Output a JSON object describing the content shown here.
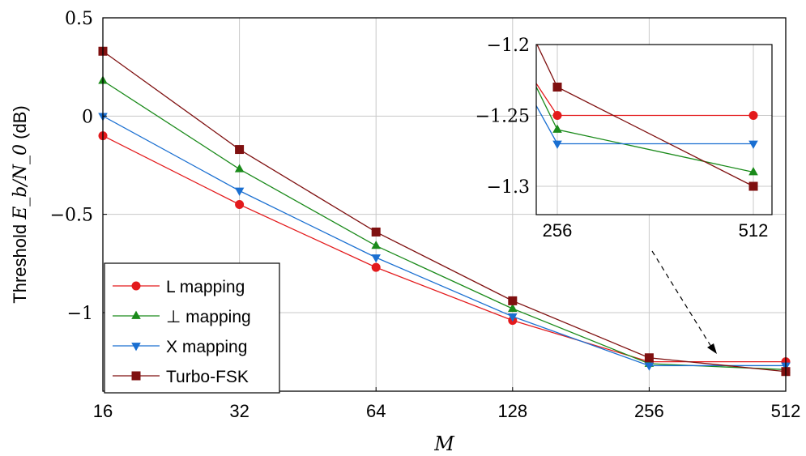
{
  "chart_data": [
    {
      "type": "line",
      "xscale": "log2",
      "x": [
        16,
        32,
        64,
        128,
        256,
        512
      ],
      "xtick_labels": [
        "16",
        "32",
        "64",
        "128",
        "256",
        "512"
      ],
      "ylim": [
        -1.4,
        0.5
      ],
      "yticks": [
        0.5,
        0,
        -0.5,
        -1
      ],
      "ytick_labels": [
        "0.5",
        "0",
        "−0.5",
        "−1"
      ],
      "xlabel": "M",
      "ylabel_prefix": "Threshold ",
      "ylabel_math": "E_b/N_0",
      "ylabel_suffix": " (dB)",
      "grid": true,
      "legend_position": "bottom-left",
      "series": [
        {
          "name": "L mapping",
          "color": "#e31a1c",
          "marker": "circle",
          "values": [
            -0.1,
            -0.45,
            -0.77,
            -1.04,
            -1.25,
            -1.25
          ]
        },
        {
          "name": "⊥ mapping",
          "color": "#1a8a1a",
          "marker": "triangle-up",
          "values": [
            0.18,
            -0.27,
            -0.66,
            -0.98,
            -1.26,
            -1.29
          ]
        },
        {
          "name": "X mapping",
          "color": "#1a6fd1",
          "marker": "triangle-down",
          "values": [
            0.0,
            -0.38,
            -0.72,
            -1.02,
            -1.27,
            -1.27
          ]
        },
        {
          "name": "Turbo-FSK",
          "color": "#7f1010",
          "marker": "square",
          "values": [
            0.33,
            -0.17,
            -0.59,
            -0.94,
            -1.23,
            -1.3
          ]
        }
      ]
    },
    {
      "type": "line",
      "role": "inset-zoom",
      "x": [
        256,
        512
      ],
      "xtick_labels": [
        "256",
        "512"
      ],
      "ylim": [
        -1.32,
        -1.2
      ],
      "yticks": [
        -1.2,
        -1.25,
        -1.3
      ],
      "ytick_labels": [
        "−1.2",
        "−1.25",
        "−1.3"
      ],
      "grid": true,
      "series": [
        {
          "name": "L mapping",
          "color": "#e31a1c",
          "marker": "circle",
          "values": [
            -1.25,
            -1.25
          ]
        },
        {
          "name": "⊥ mapping",
          "color": "#1a8a1a",
          "marker": "triangle-up",
          "values": [
            -1.26,
            -1.29
          ]
        },
        {
          "name": "X mapping",
          "color": "#1a6fd1",
          "marker": "triangle-down",
          "values": [
            -1.27,
            -1.27
          ]
        },
        {
          "name": "Turbo-FSK",
          "color": "#7f1010",
          "marker": "square",
          "values": [
            -1.23,
            -1.3
          ]
        }
      ]
    }
  ]
}
